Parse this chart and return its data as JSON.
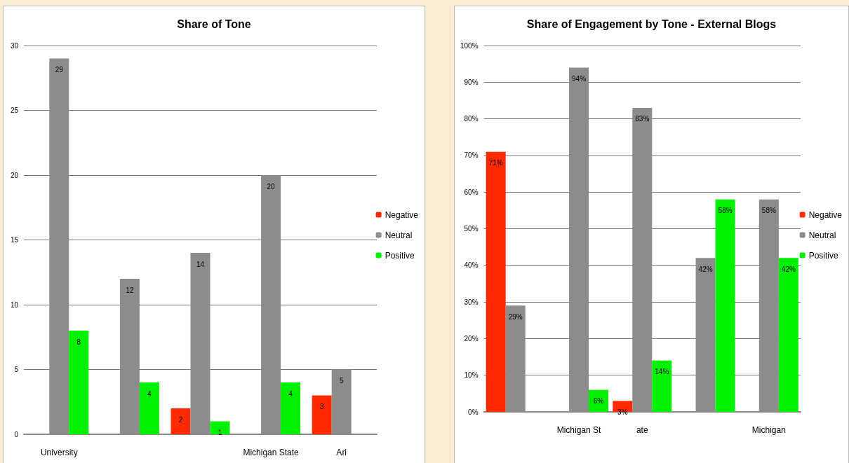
{
  "chart_data": [
    {
      "type": "bar",
      "title": "Share of Tone",
      "categories": [
        "University",
        null,
        null,
        "Michigan State",
        "Ari"
      ],
      "series": [
        {
          "name": "Negative",
          "color": "#ff2a00",
          "values": [
            null,
            null,
            2,
            null,
            3
          ]
        },
        {
          "name": "Neutral",
          "color": "#8c8c8c",
          "values": [
            29,
            12,
            14,
            20,
            5
          ]
        },
        {
          "name": "Positive",
          "color": "#00f000",
          "values": [
            8,
            4,
            1,
            4,
            null
          ]
        }
      ],
      "ylim": [
        0,
        30
      ],
      "yticks": [
        0,
        5,
        10,
        15,
        20,
        25,
        30
      ],
      "grid": "y",
      "legend": "right",
      "data_labels": true
    },
    {
      "type": "bar",
      "title": "Share of Engagement by Tone - External Blogs",
      "categories": [
        null,
        "Michigan St",
        "ate",
        null,
        "Michigan"
      ],
      "series": [
        {
          "name": "Negative",
          "color": "#ff2a00",
          "values": [
            71,
            null,
            3,
            null,
            null
          ],
          "value_labels": [
            "71%",
            null,
            "3%",
            null,
            null
          ]
        },
        {
          "name": "Neutral",
          "color": "#8c8c8c",
          "values": [
            29,
            94,
            83,
            42,
            58
          ],
          "value_labels": [
            "29%",
            "94%",
            "83%",
            "42%",
            "58%"
          ]
        },
        {
          "name": "Positive",
          "color": "#00f000",
          "values": [
            null,
            6,
            14,
            58,
            42
          ],
          "value_labels": [
            null,
            "6%",
            "14%",
            "58%",
            "42%"
          ]
        }
      ],
      "ylim": [
        0,
        100
      ],
      "yticks": [
        {
          "value": 0,
          "label": "0%"
        },
        {
          "value": 10,
          "label": "10%"
        },
        {
          "value": 20,
          "label": "20%"
        },
        {
          "value": 30,
          "label": "30%"
        },
        {
          "value": 40,
          "label": "40%"
        },
        {
          "value": 50,
          "label": "50%"
        },
        {
          "value": 60,
          "label": "60%"
        },
        {
          "value": 70,
          "label": "70%"
        },
        {
          "value": 80,
          "label": "80%"
        },
        {
          "value": 90,
          "label": "90%"
        },
        {
          "value": 100,
          "label": "100%"
        }
      ],
      "grid": "y",
      "legend": "right"
    }
  ]
}
